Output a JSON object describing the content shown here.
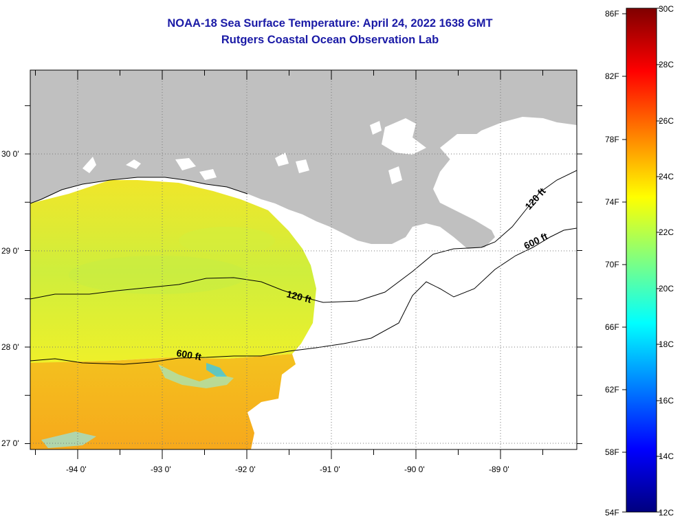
{
  "title": {
    "line1": "NOAA-18 Sea Surface Temperature:  April 24, 2022 1638 GMT",
    "line2": "Rutgers Coastal Ocean Observation Lab"
  },
  "map": {
    "lon_labels": [
      "-94 0'",
      "-93 0'",
      "-92 0'",
      "-91 0'",
      "-90 0'",
      "-89 0'"
    ],
    "lat_labels": [
      "30 0'",
      "29 0'",
      "28 0'",
      "27 0'"
    ],
    "contour_labels": {
      "c120_left": "120 ft",
      "c120_right": "120 ft",
      "c600_left": "600 ft",
      "c600_right": "600 ft"
    },
    "colors": {
      "land": "#c0c0c0",
      "nodata": "#ffffff",
      "sst_north": "#e6ea2a",
      "sst_south": "#f5b21e"
    }
  },
  "colorbar": {
    "fahrenheit": [
      "86F",
      "82F",
      "78F",
      "74F",
      "70F",
      "66F",
      "62F",
      "58F",
      "54F"
    ],
    "celsius": [
      "30C",
      "28C",
      "26C",
      "24C",
      "22C",
      "20C",
      "18C",
      "16C",
      "14C",
      "12C"
    ],
    "gradient": [
      "#00007f",
      "#0000ff",
      "#0080ff",
      "#00ffff",
      "#80ff80",
      "#ffff00",
      "#ff8000",
      "#ff0000",
      "#7f0000"
    ]
  }
}
